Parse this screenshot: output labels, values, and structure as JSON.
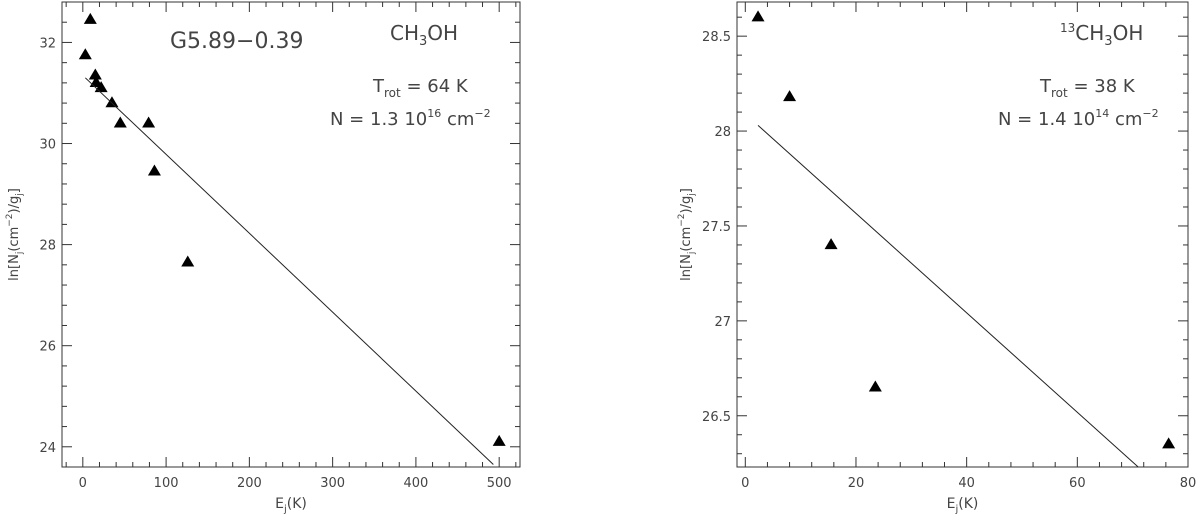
{
  "chart_data": [
    {
      "type": "scatter",
      "title": "G5.89−0.39",
      "molecule_label": {
        "main": "CH",
        "sub": "3",
        "rest": "OH"
      },
      "trot_label": {
        "T": "T",
        "sub": "rot",
        "eq": " = 64 K"
      },
      "n_label": {
        "pre": "N = 1.3 10",
        "sup": "16",
        "unit": " cm",
        "unit_sup": "−2"
      },
      "xlabel": {
        "main": "E",
        "sub": "j",
        "rest": "(K)"
      },
      "ylabel": "ln[N_j(cm^-2)/g_j]",
      "xlim": [
        -25,
        525
      ],
      "ylim": [
        23.6,
        32.8
      ],
      "xticks": [
        0,
        100,
        200,
        300,
        400,
        500
      ],
      "yticks": [
        24,
        26,
        28,
        30,
        32
      ],
      "ytick_labels": [
        "24",
        "26",
        "28",
        "30",
        "32"
      ],
      "series": [
        {
          "kind": "points",
          "x": [
            3,
            9,
            15,
            16,
            22,
            35,
            45,
            79,
            86,
            126,
            500
          ],
          "y": [
            31.75,
            32.45,
            31.35,
            31.2,
            31.1,
            30.8,
            30.4,
            30.4,
            29.45,
            27.65,
            24.1
          ]
        },
        {
          "kind": "fit",
          "x": [
            3,
            493
          ],
          "y": [
            31.3,
            23.65
          ]
        }
      ]
    },
    {
      "type": "scatter",
      "molecule_label": {
        "pre_sup": "13",
        "main": "CH",
        "sub": "3",
        "rest": "OH"
      },
      "trot_label": {
        "T": "T",
        "sub": "rot",
        "eq": " = 38 K"
      },
      "n_label": {
        "pre": "N = 1.4 10",
        "sup": "14",
        "unit": " cm",
        "unit_sup": "−2"
      },
      "xlabel": {
        "main": "E",
        "sub": "j",
        "rest": "(K)"
      },
      "ylabel": "ln[N_j(cm^-2)/g_j]",
      "xlim": [
        -1.5,
        80
      ],
      "ylim": [
        26.23,
        28.68
      ],
      "xticks": [
        0,
        20,
        40,
        60,
        80
      ],
      "yticks": [
        26.5,
        27,
        27.5,
        28,
        28.5
      ],
      "ytick_labels": [
        "26.5",
        "27",
        "27.5",
        "28",
        "28.5"
      ],
      "series": [
        {
          "kind": "points",
          "x": [
            2.3,
            8,
            15.5,
            23.5,
            76.5
          ],
          "y": [
            28.6,
            28.18,
            27.4,
            26.65,
            26.35
          ]
        },
        {
          "kind": "fit",
          "x": [
            2.3,
            71
          ],
          "y": [
            28.03,
            26.23
          ]
        }
      ]
    }
  ]
}
